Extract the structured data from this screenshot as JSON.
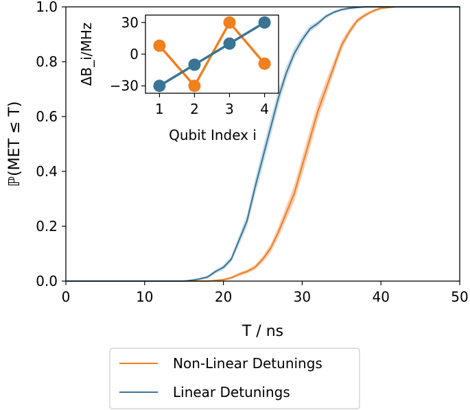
{
  "colors": {
    "orange": "#f07f1e",
    "blue": "#3a7494",
    "orange_band": "#f7c6a8",
    "blue_band": "#c3d9e6"
  },
  "chart_data": [
    {
      "type": "line",
      "ylabel": "ℙ(MET ≤ T)",
      "xlabel": "T / ns",
      "xlim": [
        0,
        50
      ],
      "ylim": [
        0,
        1
      ],
      "xticks": [
        "0",
        "10",
        "20",
        "30",
        "40",
        "50"
      ],
      "yticks": [
        "0.0",
        "0.2",
        "0.4",
        "0.6",
        "0.8",
        "1.0"
      ],
      "grid": false,
      "legend_position": "bottom, below plot",
      "series": [
        {
          "name": "Non-Linear Detunings",
          "color": "#f07f1e",
          "points": [
            [
              0,
              0
            ],
            [
              15,
              0
            ],
            [
              18,
              0
            ],
            [
              20,
              0.005
            ],
            [
              21,
              0.012
            ],
            [
              22,
              0.025
            ],
            [
              23,
              0.035
            ],
            [
              24,
              0.05
            ],
            [
              25,
              0.08
            ],
            [
              26,
              0.12
            ],
            [
              27,
              0.18
            ],
            [
              28,
              0.25
            ],
            [
              29,
              0.32
            ],
            [
              30,
              0.42
            ],
            [
              31,
              0.52
            ],
            [
              32,
              0.62
            ],
            [
              33,
              0.7
            ],
            [
              34,
              0.78
            ],
            [
              35,
              0.86
            ],
            [
              36,
              0.91
            ],
            [
              37,
              0.95
            ],
            [
              38,
              0.97
            ],
            [
              39,
              0.985
            ],
            [
              40,
              0.995
            ],
            [
              42,
              1.0
            ],
            [
              50,
              1.0
            ]
          ],
          "band_halfwidth": 0.03
        },
        {
          "name": "Linear Detunings",
          "color": "#3a7494",
          "points": [
            [
              0,
              0
            ],
            [
              15,
              0
            ],
            [
              16,
              0.003
            ],
            [
              17,
              0.008
            ],
            [
              18,
              0.015
            ],
            [
              19,
              0.035
            ],
            [
              20,
              0.05
            ],
            [
              21,
              0.08
            ],
            [
              22,
              0.15
            ],
            [
              23,
              0.22
            ],
            [
              24,
              0.34
            ],
            [
              25,
              0.45
            ],
            [
              26,
              0.56
            ],
            [
              27,
              0.67
            ],
            [
              28,
              0.76
            ],
            [
              29,
              0.83
            ],
            [
              30,
              0.88
            ],
            [
              31,
              0.92
            ],
            [
              32,
              0.94
            ],
            [
              33,
              0.965
            ],
            [
              34,
              0.98
            ],
            [
              35,
              0.99
            ],
            [
              36,
              0.995
            ],
            [
              38,
              1.0
            ],
            [
              50,
              1.0
            ]
          ],
          "band_halfwidth": 0.03
        }
      ]
    },
    {
      "type": "line",
      "xlabel": "Qubit Index i",
      "ylabel": "ΔB_i/MHz",
      "xlim": [
        0.6,
        4.4
      ],
      "ylim": [
        -37,
        37
      ],
      "xticks": [
        "1",
        "2",
        "3",
        "4"
      ],
      "yticks": [
        "−30",
        "0",
        "30"
      ],
      "series": [
        {
          "color": "#f07f1e",
          "x": [
            1,
            2,
            3,
            4
          ],
          "y": [
            8,
            -30,
            30,
            -9
          ]
        },
        {
          "color": "#3a7494",
          "x": [
            1,
            2,
            3,
            4
          ],
          "y": [
            -30,
            -10,
            10,
            30
          ]
        }
      ]
    }
  ],
  "legend": [
    {
      "label": "Non-Linear Detunings",
      "color": "#f07f1e"
    },
    {
      "label": "Linear Detunings",
      "color": "#3a7494"
    }
  ]
}
